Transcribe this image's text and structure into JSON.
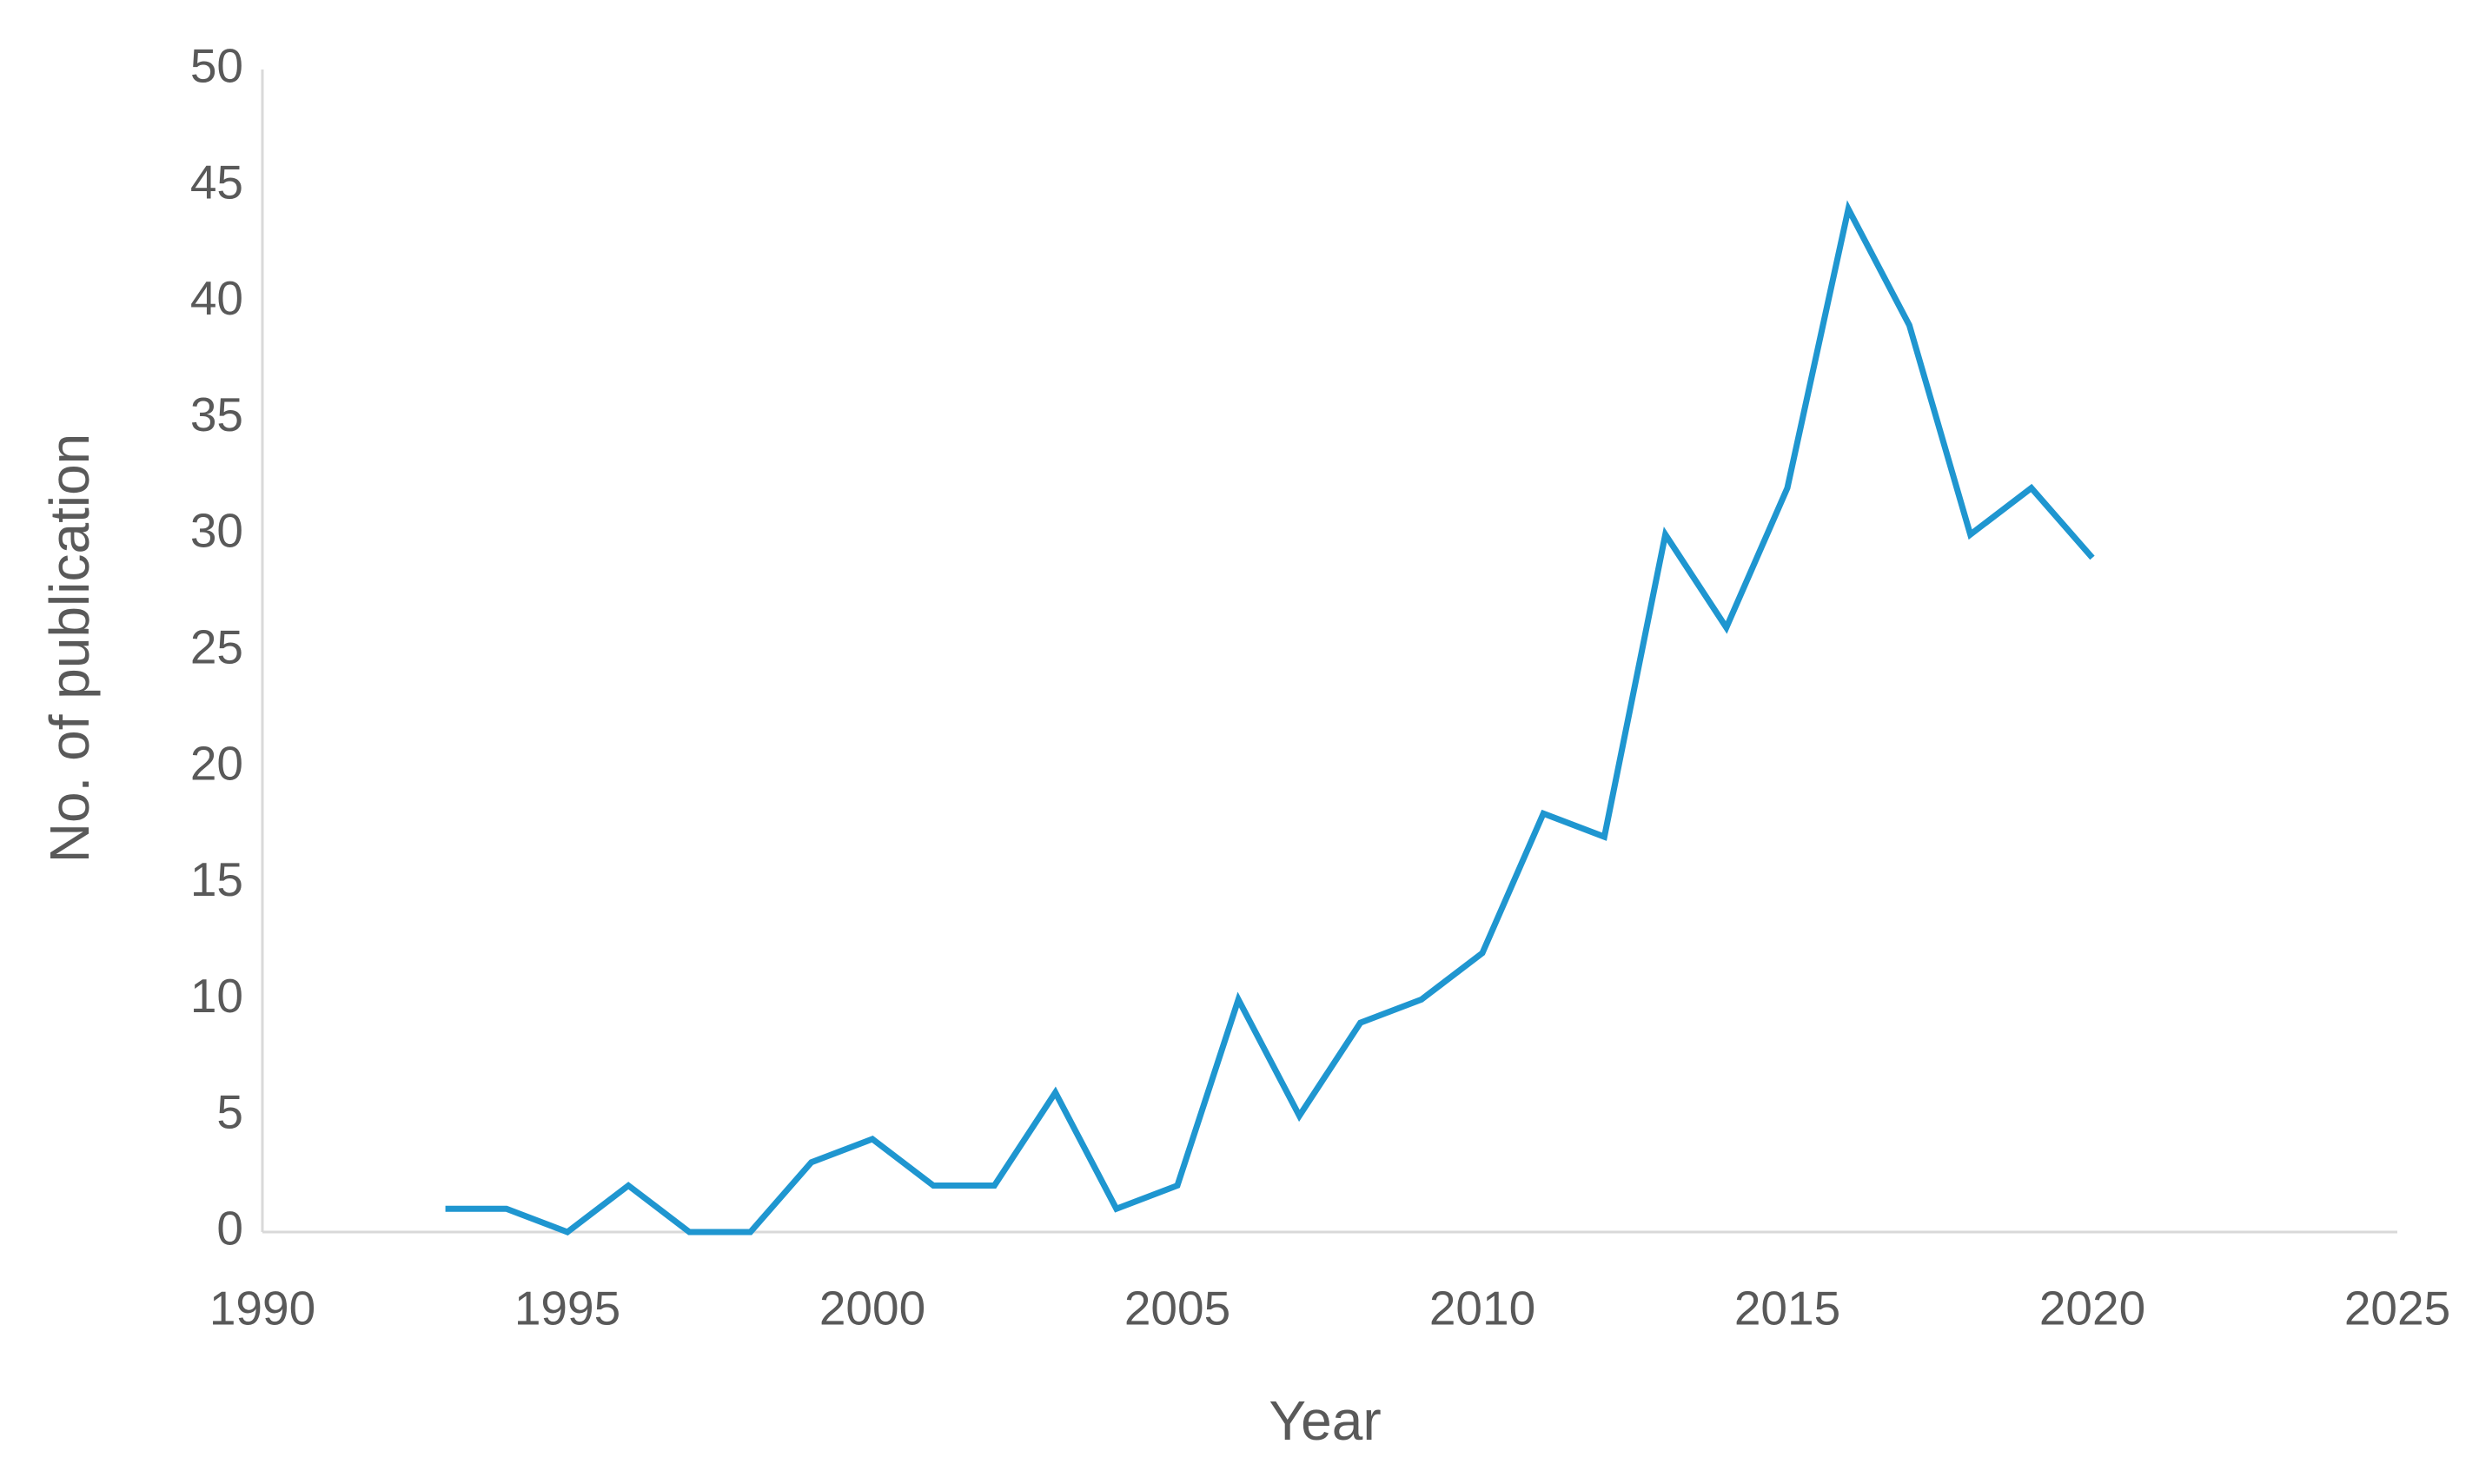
{
  "chart_data": {
    "type": "line",
    "x_label": "Year",
    "y_label": "No. of publication",
    "x": [
      1993,
      1994,
      1995,
      1996,
      1997,
      1998,
      1999,
      2000,
      2001,
      2002,
      2003,
      2004,
      2005,
      2006,
      2007,
      2008,
      2009,
      2010,
      2011,
      2012,
      2013,
      2014,
      2015,
      2016,
      2017,
      2018,
      2019,
      2020
    ],
    "series": [
      {
        "color": "#1f96d0",
        "values": [
          1,
          1,
          0,
          2,
          0,
          0,
          3,
          4,
          2,
          2,
          6,
          1,
          2,
          10,
          5,
          9,
          10,
          12,
          18,
          17,
          30,
          26,
          32,
          44,
          39,
          30,
          32,
          29
        ]
      }
    ],
    "xlim": [
      1990,
      2025
    ],
    "xticks": [
      1990,
      1995,
      2000,
      2005,
      2010,
      2015,
      2020,
      2025
    ],
    "ylim": [
      0,
      50
    ],
    "yticks": [
      0,
      5,
      10,
      15,
      20,
      25,
      30,
      35,
      40,
      45,
      50
    ],
    "grid": false
  }
}
